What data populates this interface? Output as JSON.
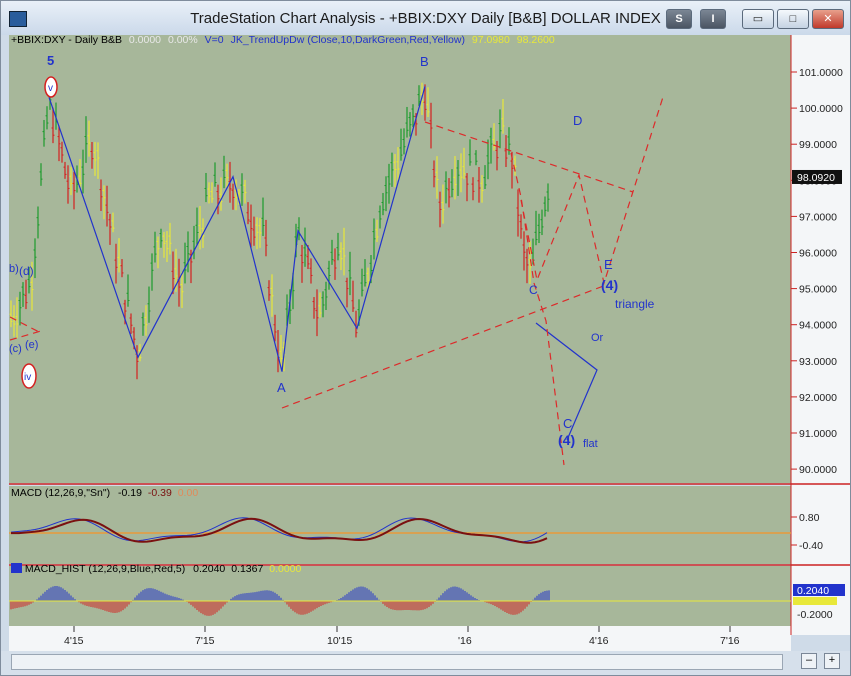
{
  "window": {
    "title": "TradeStation Chart Analysis - +BBIX:DXY Daily [B&B] DOLLAR INDEX",
    "btn_s": "S",
    "btn_i": "I",
    "btn_min": "▭",
    "btn_max": "□",
    "btn_close": "✕"
  },
  "header": {
    "symbol": "+BBIX:DXY - Daily  B&B",
    "change": "0.0000",
    "change_pct": "0.00%",
    "volume": "V=0",
    "indicator": "JK_TrendUpDw (Close,10,DarkGreen,Red,Yellow)",
    "value1": "97.0980",
    "value2": "98.2600"
  },
  "macd": {
    "label": "MACD (12,26,9,\"Sn\")",
    "v1": "-0.19",
    "v2": "-0.39",
    "v3": "0.00",
    "axis": [
      "0.80",
      "-0.40"
    ]
  },
  "macd_hist": {
    "label": "MACD_HIST (12,26,9,Blue,Red,5)",
    "v1": "0.2040",
    "v2": "0.1367",
    "v3": "0.0000",
    "axis_flag": "0.2040",
    "axis": [
      "-0.2000"
    ]
  },
  "price_axis": [
    "101.0000",
    "100.0000",
    "99.0000",
    "98.0000",
    "97.0000",
    "96.0000",
    "95.0000",
    "94.0000",
    "93.0000",
    "92.0000",
    "91.0000",
    "90.0000"
  ],
  "last_price": "98.0920",
  "x_axis": [
    "4'15",
    "7'15",
    "10'15",
    "'16",
    "4'16",
    "7'16"
  ],
  "wave_labels": {
    "w5": "5",
    "wv": "v",
    "wB": "B",
    "wD": "D",
    "wA": "A",
    "wC": "C",
    "wE": "E",
    "w4a": "(4)",
    "triangle": "triangle",
    "or": "Or",
    "wC2": "C",
    "w4b": "(4)",
    "flat": "flat",
    "wd": "(d)",
    "wb": "b)",
    "wc": "(c)",
    "we": "(e)",
    "wiv": "iv"
  },
  "colors": {
    "chart_bg": "#a7b79a",
    "bull": "#1c9a2c",
    "bear": "#d42020",
    "neutral": "#e8e83a",
    "wave": "#2233cc",
    "dash": "#dd2a2a",
    "axis_line": "#cc2222"
  }
}
